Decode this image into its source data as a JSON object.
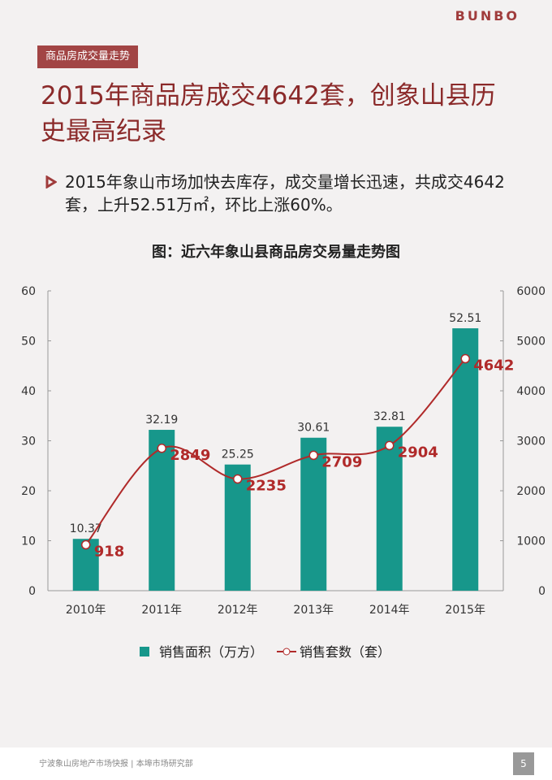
{
  "brand": "BUNBO",
  "tag": "商品房成交量走势",
  "heading": "2015年商品房成交4642套，创象山县历史最高纪录",
  "bullet": "2015年象山市场加快去库存，成交量增长迅速，共成交4642套，上升52.51万㎡，环比上涨60%。",
  "chart_data": {
    "type": "bar-line",
    "title": "图：近六年象山县商品房交易量走势图",
    "categories": [
      "2010年",
      "2011年",
      "2012年",
      "2013年",
      "2014年",
      "2015年"
    ],
    "series": [
      {
        "name": "销售面积（万方）",
        "type": "bar",
        "color": "#17978b",
        "values": [
          10.37,
          32.19,
          25.25,
          30.61,
          32.81,
          52.51
        ]
      },
      {
        "name": "销售套数（套）",
        "type": "line",
        "axis": "y2",
        "color": "#b02a2a",
        "values": [
          918,
          2849,
          2235,
          2709,
          2904,
          4642
        ]
      }
    ],
    "ylim": [
      0,
      60
    ],
    "yticks": [
      0,
      10,
      20,
      30,
      40,
      50,
      60
    ],
    "y2lim": [
      0,
      6000
    ],
    "y2ticks": [
      0,
      1000,
      2000,
      3000,
      4000,
      5000,
      6000
    ]
  },
  "footer": "宁波象山房地产市场快报 | 本埠市场研究部",
  "page_number": "5"
}
